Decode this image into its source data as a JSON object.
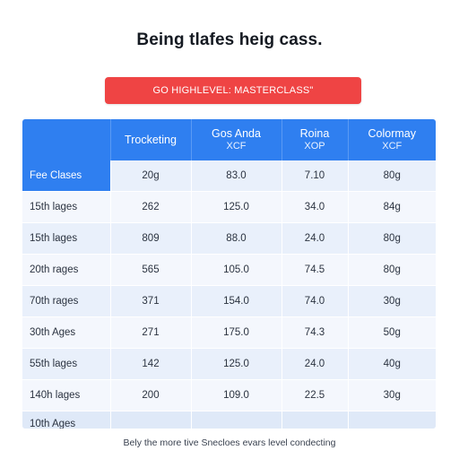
{
  "heading": "Being tlafes heig cass.",
  "cta_label": "GO HIGHLEVEL: MASTERCLASS\"",
  "table": {
    "headers": [
      {
        "title": "",
        "sub": ""
      },
      {
        "title": "Trocketing",
        "sub": ""
      },
      {
        "title": "Gos Anda",
        "sub": "XCF"
      },
      {
        "title": "Roina",
        "sub": "XOP"
      },
      {
        "title": "Colormay",
        "sub": "XCF"
      }
    ],
    "rows": [
      {
        "label": "Fee Clases",
        "cells": [
          "20g",
          "83.0",
          "7.10",
          "80g"
        ]
      },
      {
        "label": "15th lages",
        "cells": [
          "262",
          "125.0",
          "34.0",
          "84g"
        ]
      },
      {
        "label": "15th lages",
        "cells": [
          "809",
          "88.0",
          "24.0",
          "80g"
        ]
      },
      {
        "label": "20th rages",
        "cells": [
          "565",
          "105.0",
          "74.5",
          "80g"
        ]
      },
      {
        "label": "70th rages",
        "cells": [
          "371",
          "154.0",
          "74.0",
          "30g"
        ]
      },
      {
        "label": "30th Ages",
        "cells": [
          "271",
          "175.0",
          "74.3",
          "50g"
        ]
      },
      {
        "label": "55th lages",
        "cells": [
          "142",
          "125.0",
          "24.0",
          "40g"
        ]
      },
      {
        "label": "140h lages",
        "cells": [
          "200",
          "109.0",
          "22.5",
          "30g"
        ]
      },
      {
        "label": "10th Ages",
        "cells": [
          "",
          "",
          "",
          ""
        ]
      }
    ]
  },
  "footer": "Bely the more tive Snecloes evars level condecting",
  "colors": {
    "header_blue": "#2f7ff0",
    "cta_red": "#ef4444",
    "row_light": "#e9f0fb"
  }
}
